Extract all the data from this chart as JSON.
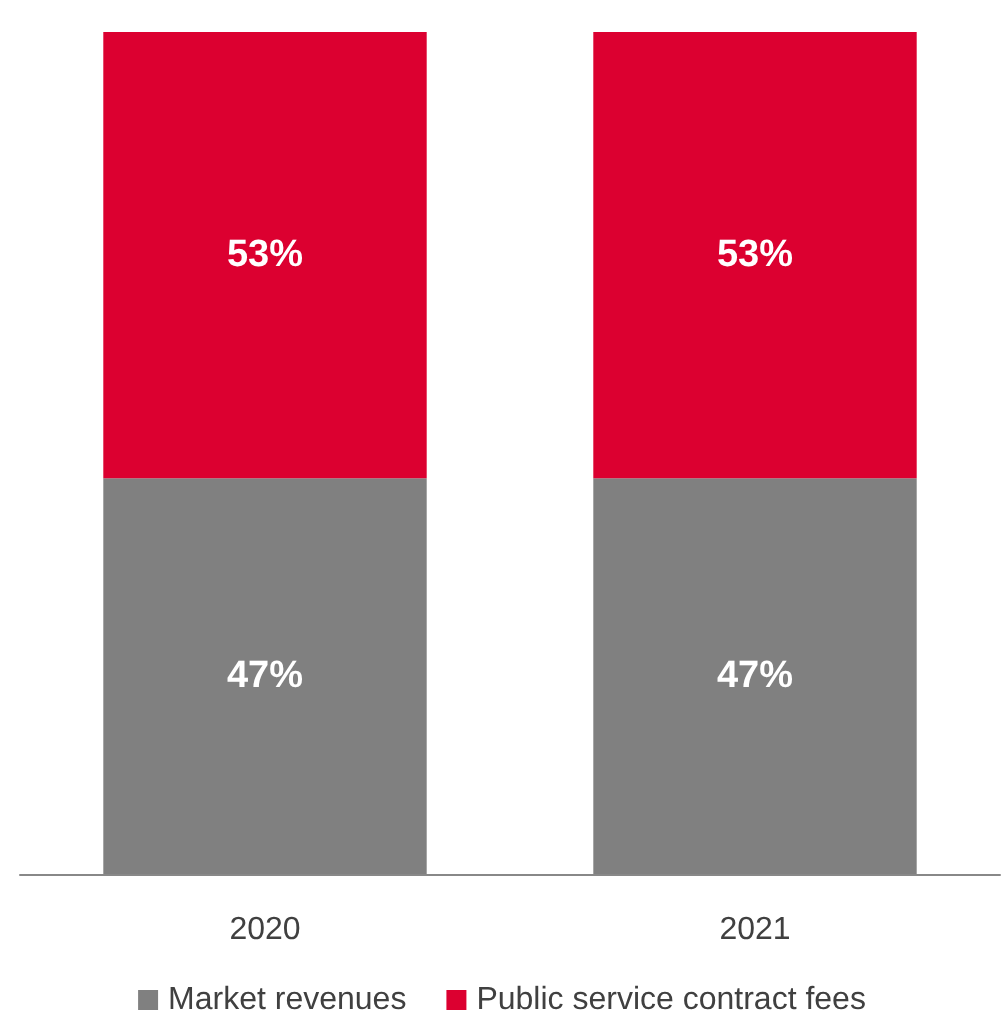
{
  "chart_data": {
    "type": "bar",
    "stacked": true,
    "categories": [
      "2020",
      "2021"
    ],
    "series": [
      {
        "name": "Market revenues",
        "color": "#808080",
        "values": [
          47,
          47
        ],
        "value_labels": [
          "47%",
          "47%"
        ]
      },
      {
        "name": "Public service contract fees",
        "color": "#dc0030",
        "values": [
          53,
          53
        ],
        "value_labels": [
          "53%",
          "53%"
        ]
      }
    ],
    "legend": "bottom"
  }
}
